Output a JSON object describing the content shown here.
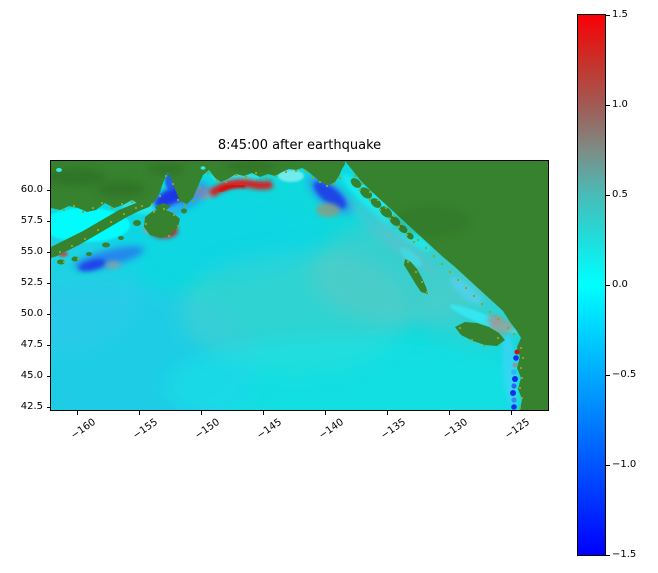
{
  "figure": {
    "background": "#ffffff",
    "frame_color": "#000000",
    "text_color": "#000000"
  },
  "chart_data": {
    "type": "heatmap",
    "title": "8:45:00 after earthquake",
    "subject": "Tsunami sea-surface-height field over the Gulf of Alaska and northeast Pacific, with green land mask and colorbar of wave amplitude",
    "x_axis": {
      "lim": [
        -162.1,
        -122.05
      ],
      "ticks": [
        -160,
        -155,
        -150,
        -145,
        -140,
        -135,
        -130,
        -125
      ],
      "tick_labels": [
        "−160",
        "−155",
        "−150",
        "−145",
        "−140",
        "−135",
        "−130",
        "−125"
      ],
      "tick_rotation_deg": 35
    },
    "y_axis": {
      "lim": [
        42.27,
        62.35
      ],
      "ticks": [
        60.0,
        57.5,
        55.0,
        52.5,
        50.0,
        47.5,
        45.0,
        42.5
      ],
      "tick_labels": [
        "60.0",
        "57.5",
        "55.0",
        "52.5",
        "50.0",
        "47.5",
        "45.0",
        "42.5"
      ]
    },
    "colorbar": {
      "lim": [
        -1.5,
        1.5
      ],
      "ticks": [
        1.5,
        1.0,
        0.5,
        0.0,
        -0.5,
        -1.0,
        -1.5
      ],
      "tick_labels": [
        "1.5",
        "1.0",
        "0.5",
        "0.0",
        "−0.5",
        "−1.0",
        "−1.5"
      ],
      "gradient_stops": [
        {
          "value": 1.5,
          "color": "#fb0006"
        },
        {
          "value": 1.25,
          "color": "#c93028"
        },
        {
          "value": 1.0,
          "color": "#a15a54"
        },
        {
          "value": 0.75,
          "color": "#7e8c86"
        },
        {
          "value": 0.5,
          "color": "#48bcb7"
        },
        {
          "value": 0.25,
          "color": "#1fdedd"
        },
        {
          "value": 0.0,
          "color": "#00ffff"
        },
        {
          "value": -0.5,
          "color": "#00aaff"
        },
        {
          "value": -1.0,
          "color": "#0055ff"
        },
        {
          "value": -1.5,
          "color": "#0000ff"
        }
      ]
    },
    "colors": {
      "land": "#37822e",
      "land_texture": "#2a6a22",
      "coast_speckle": "#93a31c",
      "ocean_background": "#0fd9dc",
      "bright_cyan": "#00ffff",
      "positive_anomaly": "#dd1111",
      "negative_anomaly": "#1a2ce8",
      "neutral_gray": "#96a09d"
    },
    "field_summary": {
      "open_ocean": "≈ 0 (cyan) with faint ±0.1 undulations",
      "positive_red_patches": [
        "arc hugging coast near ≈ (−144, 60.2)",
        "southeast of Kodiak Island ≈ (−153, 56.6)",
        "coastal speck ≈ (−124.5, 46.9)"
      ],
      "negative_blue_patches": [
        "Shelikof Strait / Cook Inlet ≈ (−153.5, 59.4)",
        "coastal bay ≈ (−139.5, 59.6)",
        "south of Alaska Peninsula ≈ (−157.5, 54.3)",
        "string of specks along WA/OR coast ≈ (−124.6, 43–46.5)"
      ],
      "neutral_gray_patches": "small gray smudges beside red/blue anomalies and faint gray-teal lobes in mid-ocean"
    }
  }
}
